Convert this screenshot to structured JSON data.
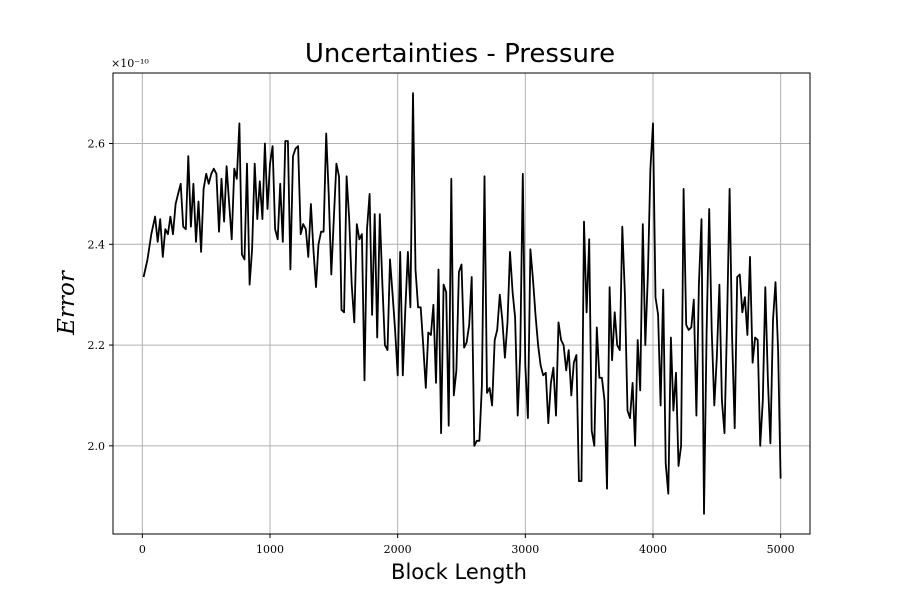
{
  "chart_data": {
    "type": "line",
    "title": "Uncertainties - Pressure",
    "xlabel": "Block Length",
    "ylabel": "Error",
    "y_scale_label": "×10⁻¹⁰",
    "xlim": [
      -230,
      5230
    ],
    "ylim": [
      1.825,
      2.74
    ],
    "grid": true,
    "xticks": [
      {
        "value": 0,
        "label": "0"
      },
      {
        "value": 1000,
        "label": "1000"
      },
      {
        "value": 2000,
        "label": "2000"
      },
      {
        "value": 3000,
        "label": "3000"
      },
      {
        "value": 4000,
        "label": "4000"
      },
      {
        "value": 5000,
        "label": "5000"
      }
    ],
    "yticks": [
      {
        "value": 2.0,
        "label": "2.0"
      },
      {
        "value": 2.2,
        "label": "2.2"
      },
      {
        "value": 2.4,
        "label": "2.4"
      },
      {
        "value": 2.6,
        "label": "2.6"
      }
    ],
    "series": [
      {
        "color": "#000000",
        "x": [
          10,
          40,
          70,
          100,
          120,
          140,
          160,
          180,
          200,
          220,
          240,
          260,
          280,
          300,
          320,
          340,
          360,
          380,
          400,
          420,
          440,
          460,
          480,
          500,
          520,
          540,
          560,
          580,
          600,
          620,
          640,
          660,
          680,
          700,
          720,
          740,
          760,
          780,
          800,
          820,
          840,
          860,
          880,
          900,
          920,
          940,
          960,
          980,
          1000,
          1020,
          1040,
          1060,
          1080,
          1100,
          1120,
          1140,
          1160,
          1180,
          1200,
          1220,
          1240,
          1260,
          1280,
          1300,
          1320,
          1340,
          1360,
          1380,
          1400,
          1420,
          1440,
          1460,
          1480,
          1500,
          1520,
          1540,
          1560,
          1580,
          1600,
          1620,
          1640,
          1660,
          1680,
          1700,
          1720,
          1740,
          1760,
          1780,
          1800,
          1820,
          1840,
          1860,
          1880,
          1900,
          1920,
          1940,
          1960,
          1980,
          2000,
          2020,
          2040,
          2060,
          2080,
          2100,
          2120,
          2140,
          2160,
          2180,
          2200,
          2220,
          2240,
          2260,
          2280,
          2300,
          2320,
          2340,
          2360,
          2380,
          2400,
          2420,
          2440,
          2460,
          2480,
          2500,
          2520,
          2540,
          2560,
          2580,
          2600,
          2620,
          2640,
          2660,
          2680,
          2700,
          2720,
          2740,
          2760,
          2780,
          2800,
          2820,
          2840,
          2860,
          2880,
          2900,
          2920,
          2940,
          2960,
          2980,
          3000,
          3020,
          3040,
          3060,
          3080,
          3100,
          3120,
          3140,
          3160,
          3180,
          3200,
          3220,
          3240,
          3260,
          3280,
          3300,
          3320,
          3340,
          3360,
          3380,
          3400,
          3420,
          3440,
          3460,
          3480,
          3500,
          3520,
          3540,
          3560,
          3580,
          3600,
          3620,
          3640,
          3660,
          3680,
          3700,
          3720,
          3740,
          3760,
          3780,
          3800,
          3820,
          3840,
          3860,
          3880,
          3900,
          3920,
          3940,
          3960,
          3980,
          4000,
          4020,
          4040,
          4060,
          4080,
          4100,
          4120,
          4140,
          4160,
          4180,
          4200,
          4220,
          4240,
          4260,
          4280,
          4300,
          4320,
          4340,
          4360,
          4380,
          4400,
          4420,
          4440,
          4460,
          4480,
          4500,
          4520,
          4540,
          4560,
          4580,
          4600,
          4620,
          4640,
          4660,
          4680,
          4700,
          4720,
          4740,
          4760,
          4780,
          4800,
          4820,
          4840,
          4860,
          4880,
          4900,
          4920,
          4940,
          4960,
          4980,
          5000
        ],
        "y": [
          2.335,
          2.37,
          2.42,
          2.455,
          2.405,
          2.45,
          2.375,
          2.43,
          2.42,
          2.455,
          2.42,
          2.48,
          2.5,
          2.52,
          2.435,
          2.43,
          2.575,
          2.435,
          2.52,
          2.405,
          2.485,
          2.385,
          2.51,
          2.54,
          2.52,
          2.54,
          2.55,
          2.54,
          2.425,
          2.53,
          2.445,
          2.555,
          2.48,
          2.41,
          2.55,
          2.53,
          2.64,
          2.38,
          2.37,
          2.56,
          2.32,
          2.39,
          2.56,
          2.45,
          2.525,
          2.45,
          2.6,
          2.47,
          2.56,
          2.595,
          2.43,
          2.41,
          2.52,
          2.405,
          2.605,
          2.605,
          2.35,
          2.575,
          2.59,
          2.595,
          2.42,
          2.44,
          2.43,
          2.375,
          2.48,
          2.39,
          2.315,
          2.4,
          2.425,
          2.425,
          2.62,
          2.5,
          2.34,
          2.45,
          2.56,
          2.535,
          2.27,
          2.265,
          2.535,
          2.45,
          2.32,
          2.245,
          2.44,
          2.41,
          2.42,
          2.13,
          2.43,
          2.5,
          2.26,
          2.46,
          2.215,
          2.46,
          2.32,
          2.2,
          2.19,
          2.37,
          2.3,
          2.23,
          2.14,
          2.385,
          2.14,
          2.27,
          2.385,
          2.275,
          2.7,
          2.35,
          2.275,
          2.275,
          2.2,
          2.115,
          2.225,
          2.22,
          2.28,
          2.125,
          2.35,
          2.025,
          2.32,
          2.305,
          2.04,
          2.53,
          2.1,
          2.15,
          2.345,
          2.36,
          2.195,
          2.205,
          2.24,
          2.335,
          2.0,
          2.01,
          2.01,
          2.12,
          2.535,
          2.105,
          2.115,
          2.08,
          2.21,
          2.23,
          2.3,
          2.25,
          2.175,
          2.245,
          2.385,
          2.305,
          2.255,
          2.06,
          2.18,
          2.54,
          2.16,
          2.055,
          2.39,
          2.33,
          2.26,
          2.2,
          2.16,
          2.14,
          2.145,
          2.045,
          2.125,
          2.155,
          2.06,
          2.245,
          2.21,
          2.2,
          2.15,
          2.19,
          2.1,
          2.165,
          2.18,
          1.93,
          1.93,
          2.445,
          2.265,
          2.41,
          2.03,
          2.0,
          2.235,
          2.135,
          2.135,
          2.09,
          1.915,
          2.315,
          2.17,
          2.265,
          2.2,
          2.19,
          2.435,
          2.3,
          2.07,
          2.055,
          2.125,
          2.0,
          2.21,
          2.11,
          2.44,
          2.2,
          2.34,
          2.55,
          2.64,
          2.295,
          2.26,
          2.08,
          2.31,
          1.965,
          1.905,
          2.215,
          2.07,
          2.145,
          1.96,
          2.0,
          2.51,
          2.24,
          2.23,
          2.235,
          2.29,
          2.06,
          2.32,
          2.45,
          1.865,
          2.225,
          2.47,
          2.23,
          2.08,
          2.175,
          2.32,
          2.09,
          2.025,
          2.24,
          2.51,
          2.215,
          2.035,
          2.335,
          2.34,
          2.265,
          2.295,
          2.22,
          2.375,
          2.165,
          2.215,
          2.21,
          2.0,
          2.09,
          2.315,
          2.13,
          2.005,
          2.25,
          2.325,
          2.19,
          1.935
        ]
      }
    ]
  }
}
